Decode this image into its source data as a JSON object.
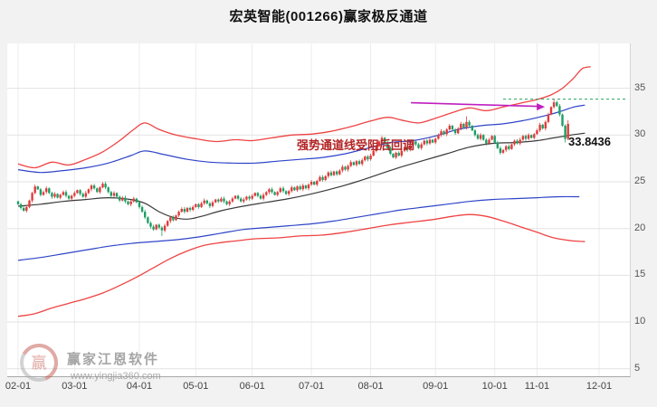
{
  "title": "宏英智能(001266)赢家极反通道",
  "annotation": {
    "text": "强势通道线受阻后回调",
    "price_label": "33.8436"
  },
  "watermark": {
    "brand": "赢家江恩软件",
    "url": "www.yingjia360.com",
    "logo_char": "赢"
  },
  "axes": {
    "y_ticks": [
      35,
      30,
      25,
      20,
      15,
      10,
      5
    ],
    "x_labels": [
      "02-01",
      "03-01",
      "04-01",
      "05-01",
      "06-01",
      "07-01",
      "08-01",
      "09-01",
      "10-01",
      "11-01",
      "12-01"
    ]
  },
  "colors": {
    "up": "#e23a3a",
    "down": "#1d9e64",
    "grid_h": "#e2e2e2",
    "grid_v": "#ececec",
    "dashed_level": "#23a35f",
    "arrow": "#bf1fbf",
    "annotation_text": "#b32424",
    "price_label": "#111111"
  },
  "chart_data": {
    "type": "candlestick",
    "title": "宏英智能(001266)赢家极反通道",
    "ylim": [
      4.2,
      39.8
    ],
    "x_tick_indices": [
      0,
      20,
      43,
      63,
      83,
      104,
      125,
      148,
      169,
      184,
      206
    ],
    "x_right_index": 206,
    "level": 33.8436,
    "level_from_index": 172,
    "annotation_index": 190,
    "candles": {
      "first_open": 22.9,
      "default_wick": 0.16,
      "closes": [
        22.6,
        22.2,
        21.9,
        22.3,
        23.0,
        23.8,
        24.5,
        24.2,
        23.6,
        23.9,
        24.3,
        23.8,
        23.4,
        23.7,
        23.3,
        23.6,
        23.9,
        23.5,
        23.2,
        23.5,
        23.8,
        24.1,
        23.7,
        23.4,
        23.8,
        24.2,
        24.6,
        24.3,
        23.9,
        24.4,
        24.8,
        24.4,
        23.9,
        23.5,
        23.8,
        23.4,
        23.0,
        23.3,
        22.9,
        22.6,
        22.9,
        23.2,
        22.8,
        22.3,
        21.8,
        21.2,
        20.6,
        20.2,
        19.9,
        20.4,
        20.1,
        19.8,
        20.3,
        20.8,
        21.2,
        20.9,
        21.4,
        21.8,
        22.1,
        21.8,
        22.2,
        22.0,
        22.3,
        22.6,
        22.3,
        22.7,
        23.0,
        22.7,
        22.4,
        22.8,
        23.1,
        22.9,
        23.2,
        22.9,
        22.6,
        22.9,
        23.2,
        23.5,
        23.2,
        22.9,
        23.1,
        23.4,
        23.2,
        23.5,
        23.8,
        23.5,
        23.2,
        23.6,
        23.9,
        24.2,
        23.9,
        23.6,
        23.9,
        24.3,
        24.0,
        23.7,
        24.0,
        24.4,
        24.1,
        24.5,
        24.2,
        24.6,
        24.3,
        24.7,
        25.0,
        24.7,
        25.1,
        25.5,
        25.2,
        25.6,
        26.0,
        25.7,
        26.1,
        25.8,
        26.2,
        26.6,
        26.3,
        26.7,
        27.1,
        26.8,
        27.2,
        26.9,
        27.3,
        27.7,
        27.4,
        27.8,
        28.3,
        28.8,
        29.3,
        29.7,
        29.2,
        28.6,
        28.0,
        27.6,
        28.1,
        27.8,
        28.3,
        28.7,
        28.4,
        28.9,
        29.3,
        29.0,
        28.6,
        29.0,
        29.4,
        29.1,
        29.5,
        29.2,
        29.6,
        30.0,
        30.4,
        30.1,
        30.6,
        31.0,
        30.6,
        30.2,
        30.7,
        31.2,
        30.8,
        31.4,
        31.0,
        30.5,
        30.0,
        29.6,
        30.0,
        29.5,
        29.1,
        29.5,
        29.9,
        29.2,
        28.6,
        28.1,
        28.4,
        28.8,
        28.5,
        29.0,
        29.4,
        29.1,
        29.5,
        29.9,
        29.6,
        30.0,
        29.7,
        30.1,
        30.5,
        31.1,
        30.7,
        31.4,
        32.2,
        33.0,
        33.5,
        33.1,
        32.2,
        31.0,
        29.6,
        31.2
      ],
      "overrides": {
        "51": {
          "low": 19.2
        },
        "159": {
          "high": 32.0
        },
        "190": {
          "high": 33.8436
        },
        "194": {
          "low": 29.2
        },
        "195": {
          "high": 31.6
        }
      }
    },
    "series": [
      {
        "name": "upper-outer-red",
        "color": "#ef4343",
        "width": 1.3,
        "points": [
          [
            0,
            26.9
          ],
          [
            6,
            26.5
          ],
          [
            12,
            27.1
          ],
          [
            18,
            26.8
          ],
          [
            24,
            27.4
          ],
          [
            30,
            28.2
          ],
          [
            36,
            29.4
          ],
          [
            41,
            30.6
          ],
          [
            45,
            31.3
          ],
          [
            50,
            30.6
          ],
          [
            56,
            30.0
          ],
          [
            63,
            29.6
          ],
          [
            70,
            29.3
          ],
          [
            77,
            29.5
          ],
          [
            83,
            29.4
          ],
          [
            90,
            29.7
          ],
          [
            97,
            30.0
          ],
          [
            104,
            30.1
          ],
          [
            111,
            30.4
          ],
          [
            118,
            30.9
          ],
          [
            125,
            31.5
          ],
          [
            131,
            31.9
          ],
          [
            136,
            31.6
          ],
          [
            142,
            31.3
          ],
          [
            148,
            31.8
          ],
          [
            154,
            32.4
          ],
          [
            160,
            32.9
          ],
          [
            166,
            32.6
          ],
          [
            172,
            33.0
          ],
          [
            178,
            33.4
          ],
          [
            184,
            33.8
          ],
          [
            189,
            34.3
          ],
          [
            193,
            35.0
          ],
          [
            197,
            36.1
          ],
          [
            200,
            37.1
          ],
          [
            203,
            37.3
          ]
        ]
      },
      {
        "name": "upper-inner-blue",
        "color": "#2f45c8",
        "width": 1.2,
        "points": [
          [
            0,
            26.3
          ],
          [
            8,
            26.0
          ],
          [
            16,
            26.2
          ],
          [
            24,
            26.5
          ],
          [
            32,
            27.0
          ],
          [
            40,
            27.8
          ],
          [
            45,
            28.3
          ],
          [
            52,
            27.9
          ],
          [
            60,
            27.4
          ],
          [
            68,
            27.1
          ],
          [
            76,
            27.0
          ],
          [
            84,
            27.0
          ],
          [
            92,
            27.2
          ],
          [
            100,
            27.4
          ],
          [
            108,
            27.6
          ],
          [
            116,
            28.0
          ],
          [
            124,
            28.6
          ],
          [
            132,
            29.2
          ],
          [
            140,
            29.4
          ],
          [
            148,
            29.9
          ],
          [
            156,
            30.6
          ],
          [
            164,
            31.0
          ],
          [
            172,
            31.2
          ],
          [
            180,
            31.6
          ],
          [
            186,
            32.0
          ],
          [
            192,
            32.5
          ],
          [
            197,
            33.0
          ],
          [
            201,
            33.2
          ]
        ]
      },
      {
        "name": "middle-black",
        "color": "#3a3a3a",
        "width": 1.2,
        "points": [
          [
            0,
            22.4
          ],
          [
            8,
            22.6
          ],
          [
            16,
            22.9
          ],
          [
            24,
            23.1
          ],
          [
            32,
            23.3
          ],
          [
            40,
            23.1
          ],
          [
            45,
            22.7
          ],
          [
            50,
            21.8
          ],
          [
            55,
            21.2
          ],
          [
            60,
            21.0
          ],
          [
            65,
            21.3
          ],
          [
            72,
            21.9
          ],
          [
            80,
            22.4
          ],
          [
            88,
            22.8
          ],
          [
            96,
            23.2
          ],
          [
            104,
            23.7
          ],
          [
            112,
            24.3
          ],
          [
            120,
            25.0
          ],
          [
            128,
            25.8
          ],
          [
            136,
            26.6
          ],
          [
            144,
            27.3
          ],
          [
            152,
            28.0
          ],
          [
            160,
            28.7
          ],
          [
            168,
            29.1
          ],
          [
            176,
            29.2
          ],
          [
            184,
            29.4
          ],
          [
            190,
            29.7
          ],
          [
            196,
            30.0
          ],
          [
            201,
            30.2
          ]
        ]
      },
      {
        "name": "lower-inner-blue",
        "color": "#2f45c8",
        "width": 1.2,
        "points": [
          [
            0,
            16.6
          ],
          [
            8,
            16.9
          ],
          [
            16,
            17.3
          ],
          [
            24,
            17.7
          ],
          [
            32,
            18.1
          ],
          [
            40,
            18.4
          ],
          [
            48,
            18.6
          ],
          [
            56,
            18.8
          ],
          [
            64,
            19.1
          ],
          [
            72,
            19.5
          ],
          [
            80,
            19.9
          ],
          [
            88,
            20.1
          ],
          [
            96,
            20.3
          ],
          [
            104,
            20.5
          ],
          [
            112,
            20.8
          ],
          [
            120,
            21.2
          ],
          [
            128,
            21.6
          ],
          [
            136,
            22.0
          ],
          [
            144,
            22.3
          ],
          [
            152,
            22.6
          ],
          [
            160,
            22.9
          ],
          [
            168,
            23.1
          ],
          [
            176,
            23.2
          ],
          [
            184,
            23.3
          ],
          [
            192,
            23.4
          ],
          [
            199,
            23.4
          ]
        ]
      },
      {
        "name": "lower-outer-red",
        "color": "#ef4343",
        "width": 1.3,
        "points": [
          [
            0,
            10.6
          ],
          [
            6,
            10.9
          ],
          [
            12,
            11.5
          ],
          [
            18,
            12.0
          ],
          [
            24,
            12.5
          ],
          [
            30,
            13.1
          ],
          [
            36,
            13.9
          ],
          [
            42,
            14.8
          ],
          [
            48,
            15.8
          ],
          [
            54,
            16.8
          ],
          [
            60,
            17.6
          ],
          [
            66,
            18.2
          ],
          [
            72,
            18.5
          ],
          [
            78,
            18.7
          ],
          [
            84,
            18.9
          ],
          [
            92,
            19.0
          ],
          [
            100,
            19.2
          ],
          [
            108,
            19.3
          ],
          [
            116,
            19.6
          ],
          [
            124,
            20.0
          ],
          [
            132,
            20.4
          ],
          [
            140,
            20.7
          ],
          [
            148,
            21.0
          ],
          [
            154,
            21.3
          ],
          [
            160,
            21.5
          ],
          [
            166,
            21.3
          ],
          [
            172,
            20.8
          ],
          [
            178,
            20.2
          ],
          [
            184,
            19.6
          ],
          [
            190,
            19.0
          ],
          [
            196,
            18.7
          ],
          [
            201,
            18.6
          ]
        ]
      }
    ]
  }
}
